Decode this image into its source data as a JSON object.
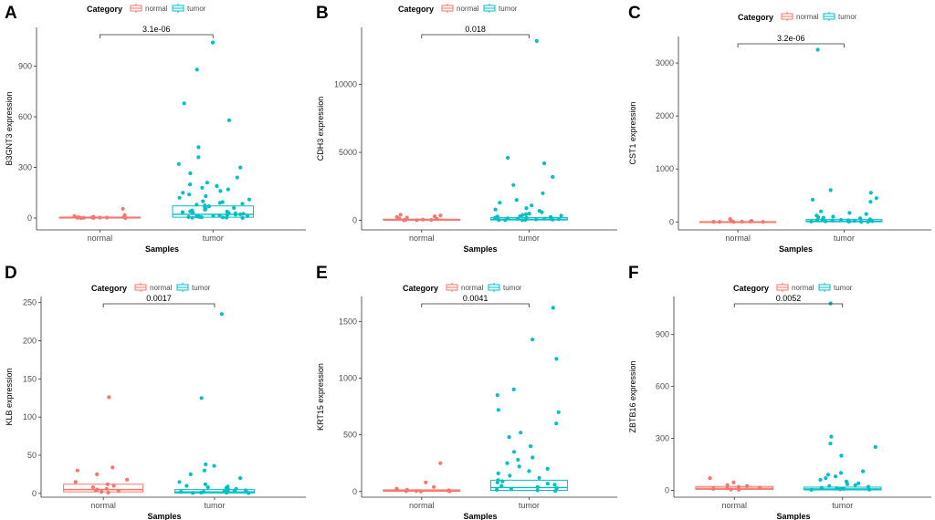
{
  "colors": {
    "normal": "#F8766D",
    "tumor": "#00BFC4",
    "axis": "#333333",
    "text": "#4d4d4d"
  },
  "legend": {
    "title": "Category",
    "items": [
      "normal",
      "tumor"
    ]
  },
  "chart_data": [
    {
      "panel": "A",
      "type": "box+jitter",
      "ylabel": "B3GNT3 expression",
      "xlabel": "Samples",
      "categories": [
        "normal",
        "tumor"
      ],
      "yticks": [
        0,
        300,
        600,
        900
      ],
      "ylim": [
        -70,
        1130
      ],
      "pvalue": "3.1e-06",
      "boxes": {
        "normal": {
          "q1": 0,
          "median": 2,
          "q3": 6
        },
        "tumor": {
          "q1": 5,
          "median": 22,
          "q3": 72
        }
      },
      "points": {
        "normal": [
          55,
          18,
          12,
          8,
          6,
          5,
          4,
          3,
          3,
          2,
          2,
          1,
          1,
          0.5
        ],
        "tumor": [
          1040,
          880,
          680,
          580,
          420,
          360,
          320,
          300,
          265,
          240,
          210,
          200,
          190,
          180,
          170,
          160,
          150,
          140,
          130,
          120,
          110,
          100,
          95,
          90,
          85,
          80,
          75,
          70,
          65,
          60,
          55,
          50,
          45,
          40,
          38,
          35,
          32,
          30,
          28,
          25,
          22,
          20,
          18,
          16,
          14,
          12,
          10,
          8,
          6,
          5,
          4,
          3,
          2,
          1
        ]
      }
    },
    {
      "panel": "B",
      "type": "box+jitter",
      "ylabel": "CDH3 expression",
      "xlabel": "Samples",
      "categories": [
        "normal",
        "tumor"
      ],
      "yticks": [
        0,
        5000,
        10000
      ],
      "ylim": [
        -700,
        14200
      ],
      "pvalue": "0.018",
      "boxes": {
        "normal": {
          "q1": 10,
          "median": 40,
          "q3": 90
        },
        "tumor": {
          "q1": 30,
          "median": 80,
          "q3": 200
        }
      },
      "points": {
        "normal": [
          420,
          360,
          300,
          250,
          200,
          150,
          110,
          80,
          60,
          40,
          30,
          20,
          10
        ],
        "tumor": [
          13200,
          4600,
          4200,
          3200,
          2600,
          2000,
          1500,
          1300,
          1100,
          900,
          800,
          700,
          600,
          500,
          450,
          400,
          350,
          300,
          280,
          250,
          220,
          200,
          180,
          150,
          130,
          110,
          90,
          70,
          50,
          40,
          30,
          20,
          10
        ]
      }
    },
    {
      "panel": "C",
      "type": "box+jitter",
      "ylabel": "CST1 expression",
      "xlabel": "Samples",
      "categories": [
        "normal",
        "tumor"
      ],
      "yticks": [
        0,
        1000,
        2000,
        3000
      ],
      "ylim": [
        -150,
        3500
      ],
      "pvalue": "3.2e-06",
      "boxes": {
        "normal": {
          "q1": 0,
          "median": 2,
          "q3": 6
        },
        "tumor": {
          "q1": 3,
          "median": 15,
          "q3": 45
        }
      },
      "points": {
        "normal": [
          55,
          20,
          12,
          8,
          5,
          3,
          2,
          1,
          1
        ],
        "tumor": [
          3250,
          600,
          550,
          450,
          420,
          380,
          200,
          170,
          150,
          120,
          100,
          90,
          80,
          70,
          60,
          50,
          45,
          40,
          35,
          30,
          25,
          20,
          15,
          12,
          10,
          8,
          6,
          4,
          2
        ]
      }
    },
    {
      "panel": "D",
      "type": "box+jitter",
      "ylabel": "KLB expression",
      "xlabel": "Samples",
      "categories": [
        "normal",
        "tumor"
      ],
      "yticks": [
        0,
        50,
        100,
        150,
        200,
        250
      ],
      "ylim": [
        -5,
        258
      ],
      "pvalue": "0.0017",
      "boxes": {
        "normal": {
          "q1": 2,
          "median": 5,
          "q3": 12
        },
        "tumor": {
          "q1": 0.5,
          "median": 2,
          "q3": 5
        }
      },
      "points": {
        "normal": [
          126,
          34,
          30,
          25,
          18,
          15,
          12,
          10,
          8,
          6,
          5,
          4,
          3,
          2,
          1
        ],
        "tumor": [
          235,
          125,
          38,
          36,
          30,
          25,
          20,
          15,
          12,
          10,
          9,
          8,
          7,
          6,
          5,
          4,
          3,
          3,
          2,
          2,
          1,
          1,
          0.5,
          0.5
        ]
      }
    },
    {
      "panel": "E",
      "type": "box+jitter",
      "ylabel": "KRT15 expression",
      "xlabel": "Samples",
      "categories": [
        "normal",
        "tumor"
      ],
      "yticks": [
        0,
        500,
        1000,
        1500
      ],
      "ylim": [
        -50,
        1720
      ],
      "pvalue": "0.0041",
      "boxes": {
        "normal": {
          "q1": 2,
          "median": 6,
          "q3": 15
        },
        "tumor": {
          "q1": 10,
          "median": 35,
          "q3": 100
        }
      },
      "points": {
        "normal": [
          250,
          80,
          40,
          25,
          15,
          10,
          8,
          5,
          3,
          2,
          1
        ],
        "tumor": [
          1620,
          1340,
          1170,
          900,
          850,
          720,
          700,
          600,
          520,
          480,
          400,
          350,
          300,
          280,
          250,
          220,
          200,
          180,
          160,
          140,
          120,
          100,
          90,
          80,
          70,
          60,
          50,
          40,
          30,
          20,
          15,
          10,
          5
        ]
      }
    },
    {
      "panel": "F",
      "type": "box+jitter",
      "ylabel": "ZBTB16 expression",
      "xlabel": "Samples",
      "categories": [
        "normal",
        "tumor"
      ],
      "yticks": [
        0,
        300,
        600,
        900
      ],
      "ylim": [
        -40,
        1120
      ],
      "pvalue": "0.0052",
      "boxes": {
        "normal": {
          "q1": 5,
          "median": 12,
          "q3": 22
        },
        "tumor": {
          "q1": 2,
          "median": 8,
          "q3": 18
        }
      },
      "points": {
        "normal": [
          70,
          45,
          30,
          25,
          20,
          15,
          12,
          10,
          8,
          5,
          3
        ],
        "tumor": [
          1080,
          310,
          270,
          250,
          200,
          110,
          100,
          90,
          80,
          70,
          60,
          50,
          40,
          35,
          30,
          25,
          20,
          15,
          12,
          10,
          8,
          6,
          4,
          2
        ]
      }
    }
  ]
}
